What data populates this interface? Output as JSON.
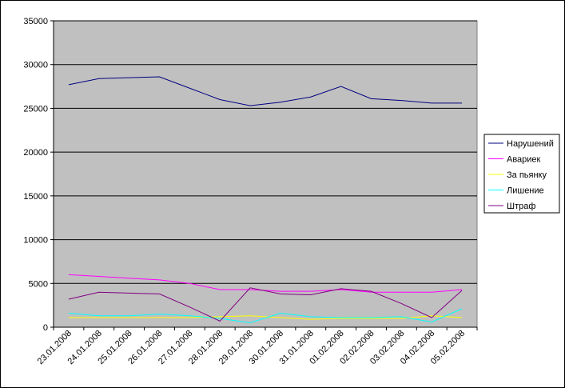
{
  "chart_data": {
    "type": "line",
    "categories": [
      "23.01.2008",
      "24.01.2008",
      "25.01.2008",
      "26.01.2008",
      "27.01.2008",
      "28.01.2008",
      "29.01.2008",
      "30.01.2008",
      "31.01.2008",
      "01.02.2008",
      "02.02.2008",
      "03.02.2008",
      "04.02.2008",
      "05.02.2008"
    ],
    "series": [
      {
        "name": "Нарушений",
        "color": "#000080",
        "values": [
          27700,
          28400,
          28500,
          28600,
          27300,
          26000,
          25300,
          25700,
          26300,
          27500,
          26100,
          25900,
          25600,
          25600
        ]
      },
      {
        "name": "Авариек",
        "color": "#ff00ff",
        "values": [
          6000,
          5800,
          5600,
          5400,
          5000,
          4300,
          4300,
          4100,
          4100,
          4300,
          4000,
          4000,
          4000,
          4300
        ]
      },
      {
        "name": "За пьянку",
        "color": "#ffff00",
        "values": [
          1100,
          1100,
          1100,
          1100,
          1100,
          1200,
          1300,
          1100,
          900,
          1000,
          1000,
          1000,
          1300,
          1100
        ]
      },
      {
        "name": "Лишение",
        "color": "#00ffff",
        "values": [
          1600,
          1300,
          1300,
          1500,
          1300,
          1000,
          500,
          1600,
          1200,
          1100,
          1100,
          1200,
          600,
          2100
        ]
      },
      {
        "name": "Штраф",
        "color": "#800080",
        "values": [
          3200,
          4000,
          3900,
          3800,
          2300,
          700,
          4500,
          3800,
          3700,
          4400,
          4100,
          2700,
          1100,
          4200
        ]
      }
    ],
    "ylim": [
      0,
      35000
    ],
    "yticks": [
      0,
      5000,
      10000,
      15000,
      20000,
      25000,
      30000,
      35000
    ],
    "grid": true,
    "legend": "right",
    "plot_color": "#c0c0c0"
  }
}
